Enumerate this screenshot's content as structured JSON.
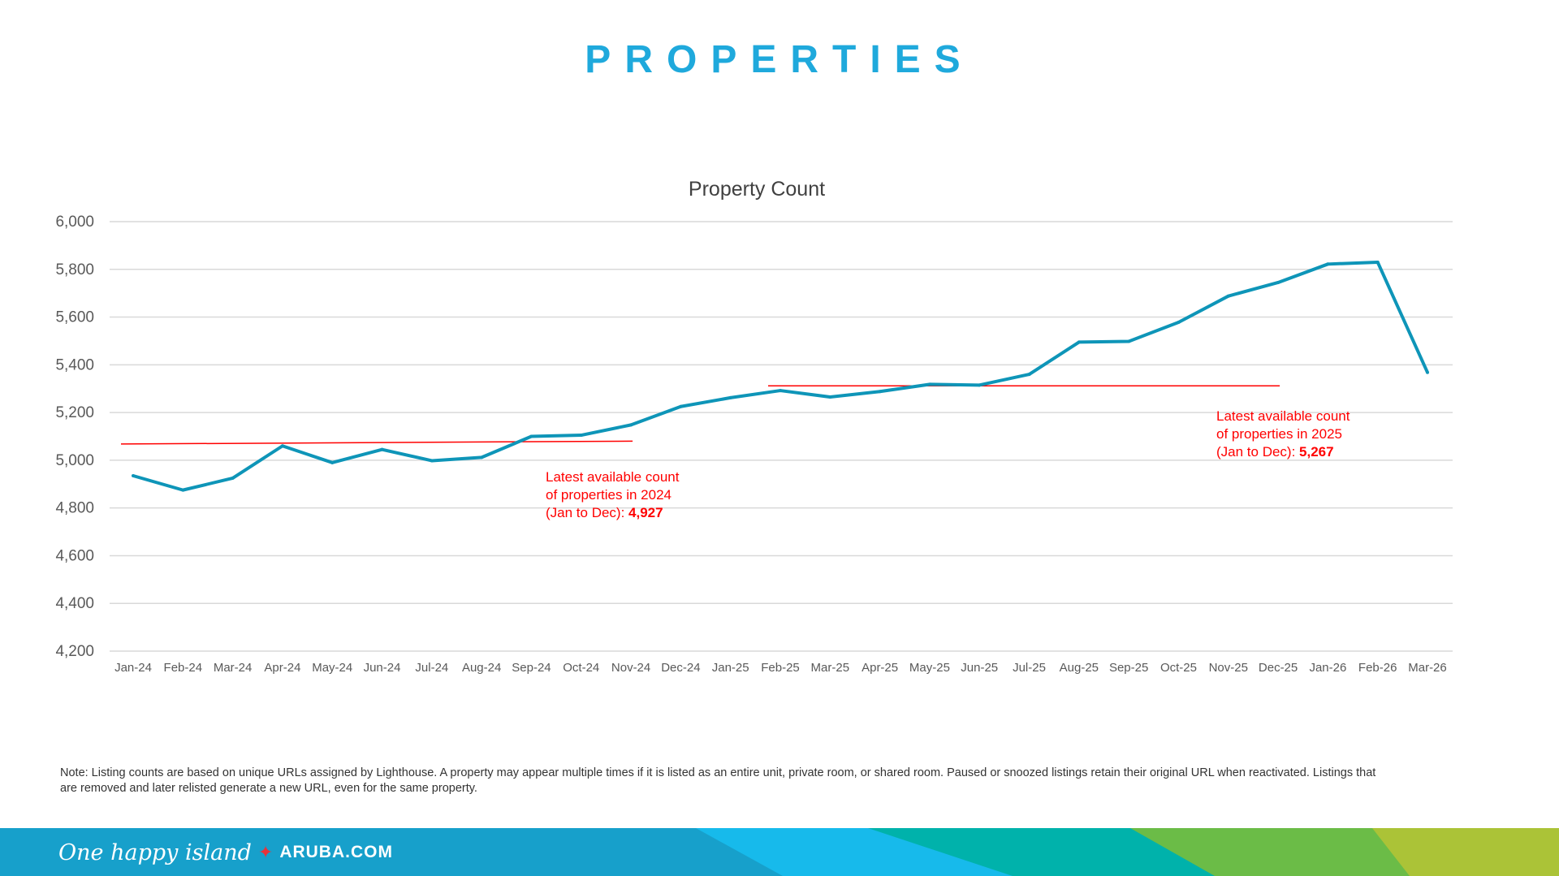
{
  "page": {
    "title": "PROPERTIES"
  },
  "annotations": [
    {
      "line1": "Latest available count",
      "line2": "of properties in 2024",
      "line3": "(Jan to Dec): ",
      "value": "4,927"
    },
    {
      "line1": "Latest available count",
      "line2": "of properties in 2025",
      "line3": "(Jan to Dec): ",
      "value": "5,267"
    }
  ],
  "note": "Note: Listing counts are based on unique URLs assigned by Lighthouse. A property may appear multiple times if it is listed as an entire unit, private room, or shared room. Paused or snoozed listings retain their original URL when reactivated. Listings that are removed and later relisted generate a new URL, even for the same property.",
  "footer": {
    "tagline": "One happy island",
    "site": "ARUBA.COM",
    "colors": [
      "#17a0cb",
      "#17baeb",
      "#00b2ab",
      "#6bbc47",
      "#abc337"
    ]
  },
  "chart_data": {
    "type": "line",
    "title": "Property Count",
    "categories": [
      "Jan-24",
      "Feb-24",
      "Mar-24",
      "Apr-24",
      "May-24",
      "Jun-24",
      "Jul-24",
      "Aug-24",
      "Sep-24",
      "Oct-24",
      "Nov-24",
      "Dec-24",
      "Jan-25",
      "Feb-25",
      "Mar-25",
      "Apr-25",
      "May-25",
      "Jun-25",
      "Jul-25",
      "Aug-25",
      "Sep-25",
      "Oct-25",
      "Nov-25",
      "Dec-25",
      "Jan-26",
      "Feb-26",
      "Mar-26"
    ],
    "values": [
      4935,
      4875,
      4925,
      5060,
      4990,
      5045,
      4998,
      5012,
      5100,
      5105,
      5148,
      5225,
      5262,
      5292,
      5265,
      5288,
      5318,
      5315,
      5360,
      5495,
      5498,
      5578,
      5688,
      5745,
      5822,
      5830,
      5368
    ],
    "ylim": [
      4200,
      6000
    ],
    "yticks": [
      4200,
      4400,
      4600,
      4800,
      5000,
      5200,
      5400,
      5600,
      5800,
      6000
    ],
    "grid": true,
    "line_color": "#0e95b8",
    "reference_lines": [
      {
        "from": "Jan-24",
        "to": "Nov-24",
        "y_start": 5068,
        "y_end": 5080,
        "color": "#ff0000"
      },
      {
        "from": "Feb-25",
        "to": "Dec-25",
        "y_start": 5312,
        "y_end": 5312,
        "color": "#ff0000"
      }
    ]
  }
}
